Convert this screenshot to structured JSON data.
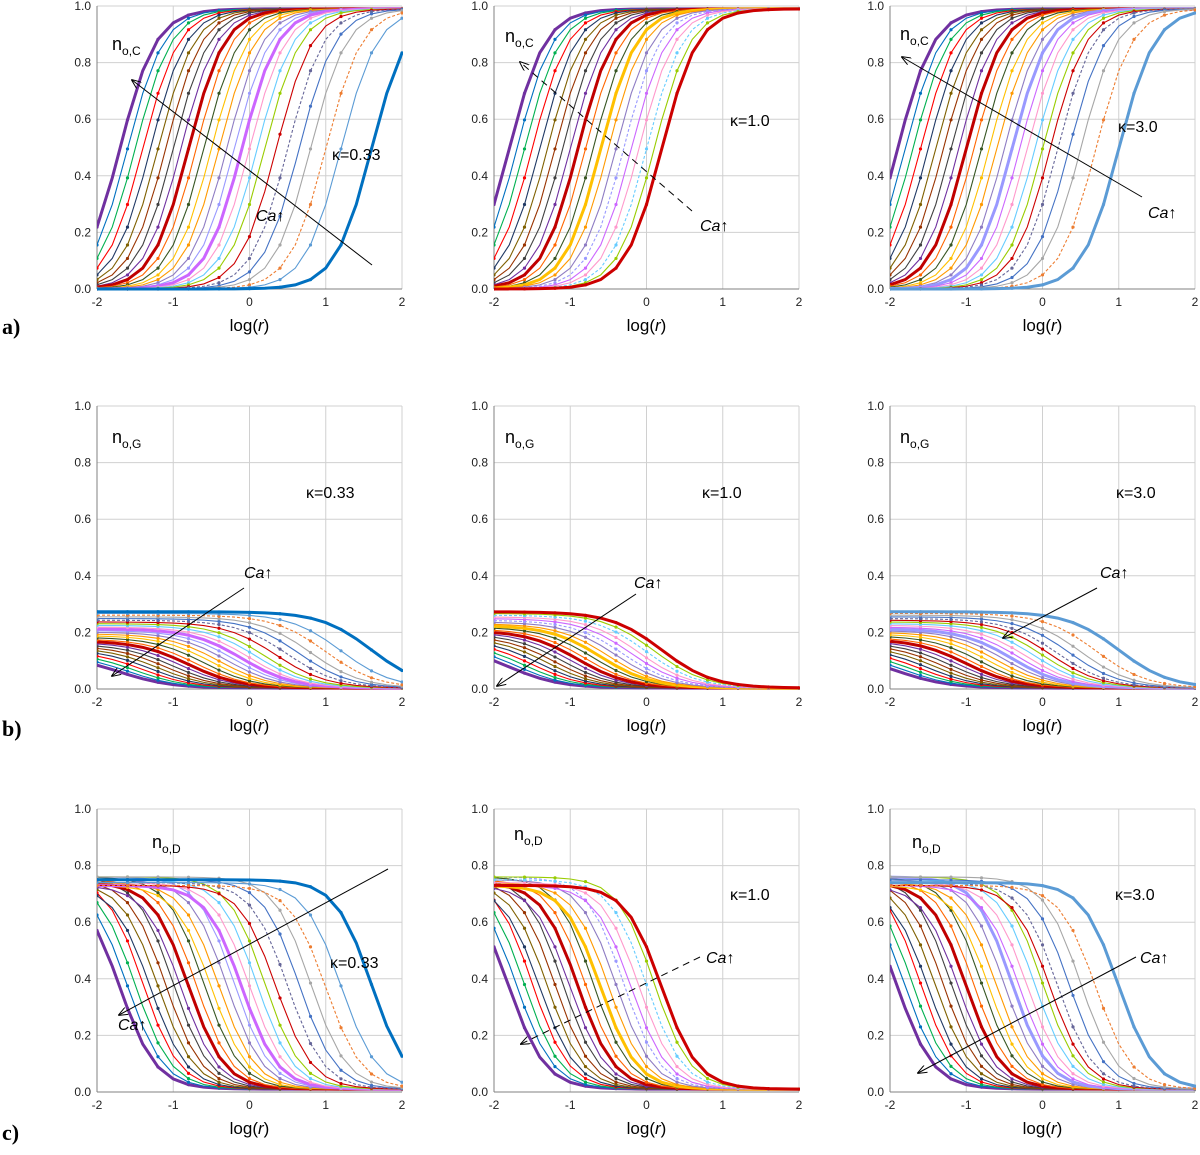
{
  "row_labels": [
    "a)",
    "b)",
    "c)"
  ],
  "chart_data": [
    {
      "type": "line",
      "panel": "a-1",
      "ylabel": "n",
      "ylabel_sub": "o,C",
      "annotation": "κ=0.33",
      "arrow_label": "Ca↑",
      "xlabel": "log(r)",
      "xlim": [
        -2,
        2
      ],
      "ylim": [
        0,
        1
      ],
      "xticks": [
        "-2",
        "-1",
        "0",
        "1",
        "2"
      ],
      "yticks": [
        "0.0",
        "0.2",
        "0.4",
        "0.6",
        "0.8",
        "1.0"
      ],
      "grid": true,
      "trend": "rise",
      "shifts": [
        -1.7,
        -1.6,
        -1.5,
        -1.4,
        -1.3,
        -1.2,
        -1.1,
        -1.0,
        -0.9,
        -0.8,
        -0.7,
        -0.6,
        -0.5,
        -0.4,
        -0.3,
        -0.2,
        -0.1,
        0.0,
        0.1,
        0.2,
        0.35,
        0.5,
        0.65,
        0.8,
        1.0,
        1.2,
        1.6
      ],
      "x_end": 2
    },
    {
      "type": "line",
      "panel": "a-2",
      "ylabel": "n",
      "ylabel_sub": "o,C",
      "annotation": "κ=1.0",
      "arrow_label": "Ca↑",
      "xlabel": "log(r)",
      "xlim": [
        -2,
        2
      ],
      "ylim": [
        0,
        1
      ],
      "xticks": [
        "-2",
        "-1",
        "0",
        "1",
        "2"
      ],
      "yticks": [
        "0.0",
        "0.2",
        "0.4",
        "0.6",
        "0.8",
        "1.0"
      ],
      "grid": true,
      "trend": "rise",
      "shifts": [
        -1.8,
        -1.7,
        -1.6,
        -1.5,
        -1.4,
        -1.3,
        -1.2,
        -1.1,
        -1.0,
        -0.9,
        -0.8,
        -0.7,
        -0.6,
        -0.5,
        -0.4,
        -0.3,
        -0.2,
        -0.1,
        0.0,
        0.1,
        0.2
      ],
      "x_end": 2
    },
    {
      "type": "line",
      "panel": "a-3",
      "ylabel": "n",
      "ylabel_sub": "o,C",
      "annotation": "κ=3.0",
      "arrow_label": "Ca↑",
      "xlabel": "log(r)",
      "xlim": [
        -2,
        2
      ],
      "ylim": [
        0,
        1
      ],
      "xticks": [
        "-2",
        "-1",
        "0",
        "1",
        "2"
      ],
      "yticks": [
        "0.0",
        "0.2",
        "0.4",
        "0.6",
        "0.8",
        "1.0"
      ],
      "grid": true,
      "trend": "rise",
      "shifts": [
        -1.9,
        -1.8,
        -1.7,
        -1.6,
        -1.5,
        -1.4,
        -1.3,
        -1.2,
        -1.1,
        -1.0,
        -0.9,
        -0.8,
        -0.7,
        -0.6,
        -0.5,
        -0.4,
        -0.3,
        -0.2,
        -0.1,
        0.0,
        0.1,
        0.2,
        0.35,
        0.5,
        0.7,
        1.0
      ],
      "x_end": 2
    },
    {
      "type": "line",
      "panel": "b-1",
      "ylabel": "n",
      "ylabel_sub": "o,G",
      "annotation": "κ=0.33",
      "arrow_label": "Ca↑",
      "xlabel": "log(r)",
      "xlim": [
        -2,
        2
      ],
      "ylim": [
        0,
        1
      ],
      "xticks": [
        "-2",
        "-1",
        "0",
        "1",
        "2"
      ],
      "yticks": [
        "0.0",
        "0.2",
        "0.4",
        "0.6",
        "0.8",
        "1.0"
      ],
      "grid": true,
      "trend": "decay",
      "shifts": [
        -1.7,
        -1.6,
        -1.5,
        -1.4,
        -1.3,
        -1.2,
        -1.1,
        -1.0,
        -0.9,
        -0.8,
        -0.7,
        -0.6,
        -0.5,
        -0.4,
        -0.3,
        -0.2,
        -0.1,
        0.0,
        0.1,
        0.2,
        0.35,
        0.5,
        0.65,
        0.8,
        1.0,
        1.2,
        1.6
      ],
      "x_end": 2
    },
    {
      "type": "line",
      "panel": "b-2",
      "ylabel": "n",
      "ylabel_sub": "o,G",
      "annotation": "κ=1.0",
      "arrow_label": "Ca↑",
      "xlabel": "log(r)",
      "xlim": [
        -2,
        2
      ],
      "ylim": [
        0,
        1
      ],
      "xticks": [
        "-2",
        "-1",
        "0",
        "1",
        "2"
      ],
      "yticks": [
        "0.0",
        "0.2",
        "0.4",
        "0.6",
        "0.8",
        "1.0"
      ],
      "grid": true,
      "trend": "decay",
      "shifts": [
        -1.8,
        -1.7,
        -1.6,
        -1.5,
        -1.4,
        -1.3,
        -1.2,
        -1.1,
        -1.0,
        -0.9,
        -0.8,
        -0.7,
        -0.6,
        -0.5,
        -0.4,
        -0.3,
        -0.2,
        -0.1,
        0.0,
        0.1,
        0.2
      ],
      "x_end": 2
    },
    {
      "type": "line",
      "panel": "b-3",
      "ylabel": "n",
      "ylabel_sub": "o,G",
      "annotation": "κ=3.0",
      "arrow_label": "Ca↑",
      "xlabel": "log(r)",
      "xlim": [
        -2,
        2
      ],
      "ylim": [
        0,
        1
      ],
      "xticks": [
        "-2",
        "-1",
        "0",
        "1",
        "2"
      ],
      "yticks": [
        "0.0",
        "0.2",
        "0.4",
        "0.6",
        "0.8",
        "1.0"
      ],
      "grid": true,
      "trend": "decay",
      "shifts": [
        -1.9,
        -1.8,
        -1.7,
        -1.6,
        -1.5,
        -1.4,
        -1.3,
        -1.2,
        -1.1,
        -1.0,
        -0.9,
        -0.8,
        -0.7,
        -0.6,
        -0.5,
        -0.4,
        -0.3,
        -0.2,
        -0.1,
        0.0,
        0.1,
        0.2,
        0.35,
        0.5,
        0.7,
        1.0
      ],
      "x_end": 2
    },
    {
      "type": "line",
      "panel": "c-1",
      "ylabel": "n",
      "ylabel_sub": "o,D",
      "annotation": "κ=0.33",
      "arrow_label": "Ca↑",
      "xlabel": "log(r)",
      "xlim": [
        -2,
        2
      ],
      "ylim": [
        0,
        1
      ],
      "xticks": [
        "-2",
        "-1",
        "0",
        "1",
        "2"
      ],
      "yticks": [
        "0.0",
        "0.2",
        "0.4",
        "0.6",
        "0.8",
        "1.0"
      ],
      "grid": true,
      "trend": "fall",
      "shifts": [
        -1.7,
        -1.6,
        -1.5,
        -1.4,
        -1.3,
        -1.2,
        -1.1,
        -1.0,
        -0.9,
        -0.8,
        -0.7,
        -0.6,
        -0.5,
        -0.4,
        -0.3,
        -0.2,
        -0.1,
        0.0,
        0.1,
        0.2,
        0.35,
        0.5,
        0.65,
        0.8,
        1.0,
        1.2,
        1.6
      ],
      "x_end": 2
    },
    {
      "type": "line",
      "panel": "c-2",
      "ylabel": "n",
      "ylabel_sub": "o,D",
      "annotation": "κ=1.0",
      "arrow_label": "Ca↑",
      "xlabel": "log(r)",
      "xlim": [
        -2,
        2
      ],
      "ylim": [
        0,
        1
      ],
      "xticks": [
        "-2",
        "-1",
        "0",
        "1",
        "2"
      ],
      "yticks": [
        "0.0",
        "0.2",
        "0.4",
        "0.6",
        "0.8",
        "1.0"
      ],
      "grid": true,
      "trend": "fall",
      "shifts": [
        -1.8,
        -1.7,
        -1.6,
        -1.5,
        -1.4,
        -1.3,
        -1.2,
        -1.1,
        -1.0,
        -0.9,
        -0.8,
        -0.7,
        -0.6,
        -0.5,
        -0.4,
        -0.3,
        -0.2,
        -0.1,
        0.0,
        0.1,
        0.2
      ],
      "x_end": 2
    },
    {
      "type": "line",
      "panel": "c-3",
      "ylabel": "n",
      "ylabel_sub": "o,D",
      "annotation": "κ=3.0",
      "arrow_label": "Ca↑",
      "xlabel": "log(r)",
      "xlim": [
        -2,
        2
      ],
      "ylim": [
        0,
        1
      ],
      "xticks": [
        "-2",
        "-1",
        "0",
        "1",
        "2"
      ],
      "yticks": [
        "0.0",
        "0.2",
        "0.4",
        "0.6",
        "0.8",
        "1.0"
      ],
      "grid": true,
      "trend": "fall",
      "shifts": [
        -1.9,
        -1.8,
        -1.7,
        -1.6,
        -1.5,
        -1.4,
        -1.3,
        -1.2,
        -1.1,
        -1.0,
        -0.9,
        -0.8,
        -0.7,
        -0.6,
        -0.5,
        -0.4,
        -0.3,
        -0.2,
        -0.1,
        0.0,
        0.1,
        0.2,
        0.35,
        0.5,
        0.7,
        1.0
      ],
      "x_end": 2
    }
  ],
  "series_colors": [
    "#7030a0",
    "#0070c0",
    "#00b050",
    "#ff0000",
    "#1f3864",
    "#7f6000",
    "#993300",
    "#404040",
    "#7030a0",
    "#c00000",
    "#ff6600",
    "#375623",
    "#ffc000",
    "#ff9900",
    "#8e7cc3",
    "#9999ff",
    "#cc66ff",
    "#ff99cc",
    "#66ccff",
    "#99cc00",
    "#cc0000",
    "#666699",
    "#4472c4",
    "#a6a6a6",
    "#ed7d31",
    "#5b9bd5",
    "#0070c0"
  ]
}
